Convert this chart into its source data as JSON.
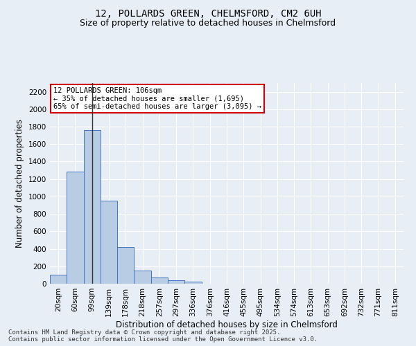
{
  "title": "12, POLLARDS GREEN, CHELMSFORD, CM2 6UH",
  "subtitle": "Size of property relative to detached houses in Chelmsford",
  "xlabel": "Distribution of detached houses by size in Chelmsford",
  "ylabel": "Number of detached properties",
  "categories": [
    "20sqm",
    "60sqm",
    "99sqm",
    "139sqm",
    "178sqm",
    "218sqm",
    "257sqm",
    "297sqm",
    "336sqm",
    "376sqm",
    "416sqm",
    "455sqm",
    "495sqm",
    "534sqm",
    "574sqm",
    "613sqm",
    "653sqm",
    "692sqm",
    "732sqm",
    "771sqm",
    "811sqm"
  ],
  "values": [
    107,
    1285,
    1760,
    955,
    420,
    150,
    70,
    42,
    25,
    0,
    0,
    0,
    0,
    0,
    0,
    0,
    0,
    0,
    0,
    0,
    0
  ],
  "bar_color": "#b8cce4",
  "bar_edge_color": "#4472c4",
  "vline_x_index": 2,
  "vline_color": "#333333",
  "annotation_box_text": "12 POLLARDS GREEN: 106sqm\n← 35% of detached houses are smaller (1,695)\n65% of semi-detached houses are larger (3,095) →",
  "annotation_box_edgecolor": "#cc0000",
  "annotation_box_facecolor": "#ffffff",
  "ylim": [
    0,
    2300
  ],
  "yticks": [
    0,
    200,
    400,
    600,
    800,
    1000,
    1200,
    1400,
    1600,
    1800,
    2000,
    2200
  ],
  "background_color": "#e8eef5",
  "plot_bg_color": "#e8eef5",
  "footer_line1": "Contains HM Land Registry data © Crown copyright and database right 2025.",
  "footer_line2": "Contains public sector information licensed under the Open Government Licence v3.0.",
  "title_fontsize": 10,
  "subtitle_fontsize": 9,
  "axis_label_fontsize": 8.5,
  "tick_fontsize": 7.5,
  "annotation_fontsize": 7.5,
  "footer_fontsize": 6.5
}
